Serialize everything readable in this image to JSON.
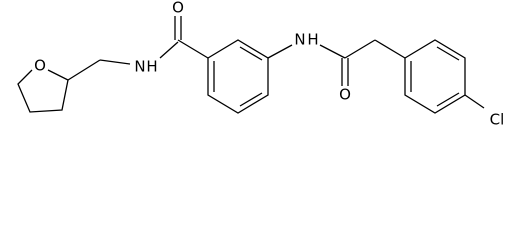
{
  "atoms": [
    "O",
    "N",
    "H",
    "O",
    "N",
    "H",
    "O",
    "Cl"
  ]
}
